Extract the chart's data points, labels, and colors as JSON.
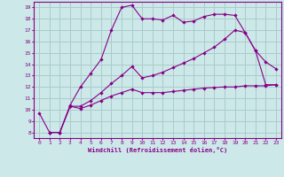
{
  "xlabel": "Windchill (Refroidissement éolien,°C)",
  "background_color": "#cce8e8",
  "grid_color": "#aacccc",
  "line_color": "#880088",
  "xlim": [
    -0.5,
    23.5
  ],
  "ylim": [
    7.5,
    19.5
  ],
  "xticks": [
    0,
    1,
    2,
    3,
    4,
    5,
    6,
    7,
    8,
    9,
    10,
    11,
    12,
    13,
    14,
    15,
    16,
    17,
    18,
    19,
    20,
    21,
    22,
    23
  ],
  "yticks": [
    8,
    9,
    10,
    11,
    12,
    13,
    14,
    15,
    16,
    17,
    18,
    19
  ],
  "curve1_x": [
    0,
    1,
    2,
    3,
    4,
    5,
    6,
    7,
    8,
    9,
    10,
    11,
    12,
    13,
    14,
    15,
    16,
    17,
    18,
    19,
    20,
    21,
    22,
    23
  ],
  "curve1_y": [
    9.7,
    8.0,
    8.0,
    10.4,
    12.0,
    13.2,
    14.4,
    17.0,
    19.0,
    19.2,
    18.0,
    18.0,
    17.9,
    18.3,
    17.7,
    17.8,
    18.2,
    18.4,
    18.4,
    18.3,
    16.8,
    15.2,
    14.2,
    13.6
  ],
  "curve2_x": [
    1,
    2,
    3,
    4,
    5,
    6,
    7,
    8,
    9,
    10,
    11,
    12,
    13,
    14,
    15,
    16,
    17,
    18,
    19,
    20,
    21,
    22,
    23
  ],
  "curve2_y": [
    8.0,
    8.0,
    10.3,
    10.1,
    10.4,
    10.8,
    11.2,
    11.5,
    11.8,
    11.5,
    11.5,
    11.5,
    11.6,
    11.7,
    11.8,
    11.9,
    11.95,
    12.0,
    12.0,
    12.1,
    12.1,
    12.1,
    12.2
  ],
  "curve3_x": [
    1,
    2,
    3,
    4,
    5,
    6,
    7,
    8,
    9,
    10,
    11,
    12,
    13,
    14,
    15,
    16,
    17,
    18,
    19,
    20,
    21,
    22,
    23
  ],
  "curve3_y": [
    8.0,
    8.0,
    10.3,
    10.3,
    10.8,
    11.5,
    12.3,
    13.0,
    13.8,
    12.8,
    13.0,
    13.3,
    13.7,
    14.1,
    14.5,
    15.0,
    15.5,
    16.2,
    17.0,
    16.8,
    15.2,
    12.2,
    12.2
  ]
}
